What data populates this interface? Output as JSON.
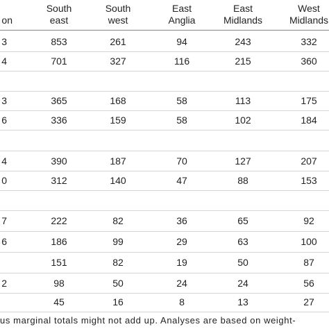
{
  "table": {
    "header": [
      [
        "on"
      ],
      [
        "South",
        "east"
      ],
      [
        "South",
        "west"
      ],
      [
        "East",
        "Anglia"
      ],
      [
        "East",
        "Midlands"
      ],
      [
        "West",
        "Midlands"
      ]
    ],
    "rows": [
      [
        "3",
        853,
        261,
        94,
        243,
        332
      ],
      [
        "4",
        701,
        327,
        116,
        215,
        360
      ],
      [],
      [
        "3",
        365,
        168,
        58,
        113,
        175
      ],
      [
        "6",
        336,
        159,
        58,
        102,
        184
      ],
      [],
      [
        "4",
        390,
        187,
        70,
        127,
        207
      ],
      [
        "0",
        312,
        140,
        47,
        88,
        153
      ],
      [],
      [
        "7",
        222,
        82,
        36,
        65,
        92
      ],
      [
        "6",
        186,
        99,
        29,
        63,
        100
      ],
      [
        null,
        151,
        82,
        19,
        50,
        87
      ],
      [
        "2",
        98,
        50,
        24,
        24,
        56
      ],
      [
        null,
        45,
        16,
        8,
        13,
        27
      ]
    ]
  },
  "footnote": "us marginal totals might not add up. Analyses are based on weight-"
}
